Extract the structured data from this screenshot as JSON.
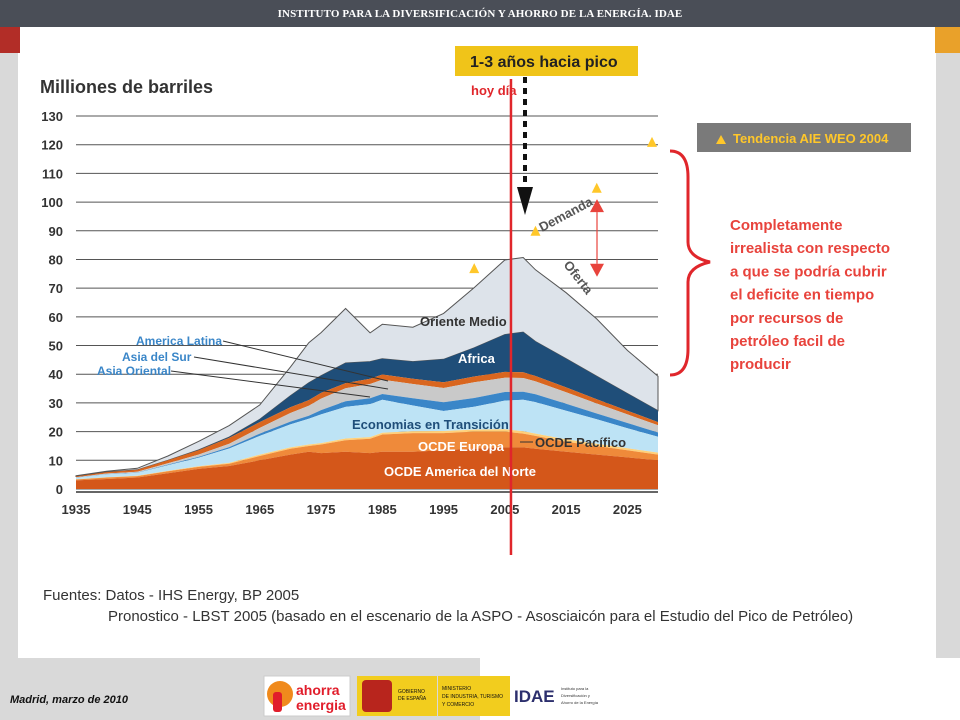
{
  "header": {
    "title": "INSTITUTO PARA LA DIVERSIFICACIÓN Y AHORRO DE LA ENERGÍA. IDAE"
  },
  "footer": {
    "date": "Madrid, marzo de 2010",
    "logos": {
      "ahorra_line1": "ahorra",
      "ahorra_line2": "energia",
      "gobierno": "GOBIERNO\nDE ESPAÑA",
      "ministerio": "MINISTERIO\nDE INDUSTRIA, TURISMO\nY COMERCIO",
      "idae": "IDAE",
      "idae_sub": "Instituto para la\nDiversificación y\nAhorro de la Energía"
    }
  },
  "colors": {
    "oced_america": "#d4571a",
    "ocde_europa": "#ef8a3a",
    "ocde_pacifico": "#ffd07a",
    "transicion": "#bde3f5",
    "asia_oriental": "#3a86c8",
    "asia_sur": "#c9c9c9",
    "america_latina": "#d9661f",
    "africa": "#1f4e79",
    "oriente_medio": "#dde3ea",
    "today_line": "#e0262b",
    "callout": "#f0c419",
    "trend_marker": "#ffc72a",
    "critique_text": "#e8433c"
  },
  "chart_data": {
    "type": "area",
    "ylabel": "Milliones de barriles",
    "yticks": [
      0,
      10,
      20,
      30,
      40,
      50,
      60,
      70,
      80,
      90,
      100,
      110,
      120,
      130
    ],
    "xticks": [
      1935,
      1945,
      1955,
      1965,
      1975,
      1985,
      1995,
      2005,
      2015,
      2025
    ],
    "ylim": [
      0,
      130
    ],
    "xlim": [
      1935,
      2030
    ],
    "grid": true,
    "x": [
      1935,
      1940,
      1945,
      1950,
      1955,
      1960,
      1965,
      1970,
      1973,
      1975,
      1979,
      1983,
      1985,
      1990,
      1995,
      2000,
      2005,
      2008,
      2010,
      2015,
      2020,
      2025,
      2030
    ],
    "series": [
      {
        "name": "OCDE America del Norte",
        "values": [
          3,
          3.5,
          4,
          5.5,
          7,
          8,
          10,
          12,
          13,
          12.5,
          13,
          12.5,
          13,
          13,
          13.5,
          14,
          14.5,
          14.5,
          14,
          13,
          12,
          11,
          10
        ]
      },
      {
        "name": "OCDE Europa",
        "values": [
          0.3,
          0.5,
          0.5,
          0.7,
          0.7,
          0.8,
          1.5,
          2,
          2,
          3,
          4,
          5,
          6,
          6.5,
          6,
          6,
          5.5,
          4.8,
          4.5,
          3.5,
          3,
          2.5,
          2
        ]
      },
      {
        "name": "OCDE Pacífico",
        "values": [
          0.1,
          0.1,
          0.1,
          0.1,
          0.2,
          0.3,
          0.5,
          0.5,
          0.5,
          0.5,
          0.6,
          0.6,
          0.6,
          0.6,
          0.7,
          0.7,
          0.8,
          0.8,
          0.8,
          0.8,
          0.8,
          0.7,
          0.7
        ]
      },
      {
        "name": "Economias en Transición",
        "values": [
          0.5,
          1,
          1,
          2,
          3,
          5,
          6.5,
          8,
          9,
          10,
          11,
          11.5,
          11.5,
          9,
          7,
          8,
          10,
          11,
          11,
          10,
          8.5,
          7,
          5.5
        ]
      },
      {
        "name": "Asia Oriental",
        "values": [
          0.1,
          0.1,
          0.1,
          0.2,
          0.3,
          0.5,
          0.8,
          1,
          1,
          1.5,
          2,
          2,
          2,
          2.5,
          3,
          3,
          3,
          2.8,
          2.7,
          2.4,
          2,
          1.8,
          1.5
        ]
      },
      {
        "name": "Asia del Sur",
        "values": [
          0.1,
          0.2,
          0.3,
          0.5,
          0.8,
          1.2,
          2,
          3,
          3.5,
          4,
          4.5,
          5,
          5,
          5,
          5,
          5.5,
          5,
          4.8,
          4.5,
          4,
          3.5,
          3,
          2.5
        ]
      },
      {
        "name": "America Latina",
        "values": [
          0.3,
          0.5,
          0.7,
          1,
          1.5,
          2,
          2,
          2,
          2,
          2,
          1.8,
          1.8,
          1.8,
          1.8,
          2,
          2,
          2,
          2,
          1.9,
          1.7,
          1.5,
          1.3,
          1.1
        ]
      },
      {
        "name": "Africa",
        "values": [
          0,
          0,
          0,
          0,
          0.1,
          0.3,
          1,
          4,
          6,
          6,
          7,
          6,
          5.5,
          6,
          8,
          10,
          13,
          14,
          12,
          10,
          8,
          6,
          4
        ]
      },
      {
        "name": "Oriente Medio",
        "values": [
          0.2,
          0.3,
          0.5,
          1.5,
          3,
          4,
          5,
          10,
          14,
          15,
          19,
          10,
          12,
          12,
          16,
          21,
          26,
          26,
          25,
          23,
          20,
          15,
          12
        ]
      }
    ],
    "annotations": {
      "callout": "1-3 años hacia pico",
      "today": "hoy día",
      "today_x": 2006,
      "demand": "Demanda",
      "supply": "Oferta",
      "legend": "Tendencia AIE WEO 2004",
      "critique": "Completamente\nirrealista con respecto\na que se podría cubrir\nel deficite en tiempo\npor recursos de\npetróleo facil de\nproducir",
      "trend_points": [
        [
          2000,
          77
        ],
        [
          2010,
          90
        ],
        [
          2020,
          105
        ],
        [
          2030,
          121
        ]
      ],
      "demand_range": [
        75,
        100
      ],
      "labels": {
        "oriente_medio": "Oriente Medio",
        "africa": "Africa",
        "america_latina": "America Latina",
        "asia_sur": "Asia del Sur",
        "asia_oriental": "Asia Oriental",
        "transicion": "Economias en Transición",
        "ocde_europa": "OCDE Europa",
        "ocde_pacifico": "OCDE Pacífico",
        "ocde_america": "OCDE America del Norte"
      }
    },
    "sources": {
      "line1": "Fuentes: Datos - IHS Energy, BP 2005",
      "line2": "Pronostico - LBST 2005 (basado en el escenario de la ASPO - Asosciaicón para el Estudio del Pico de Petróleo)"
    }
  }
}
